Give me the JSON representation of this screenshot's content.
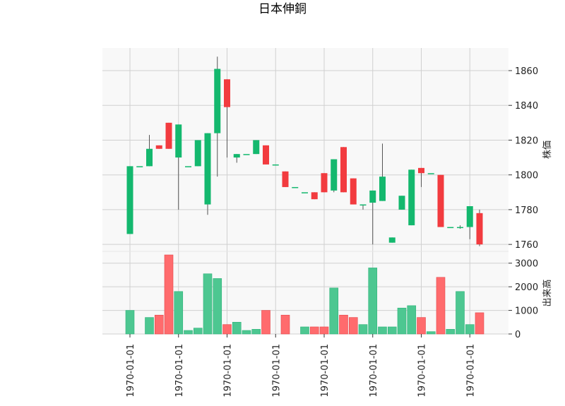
{
  "chart_data": {
    "type": "candlestick",
    "title": "日本伸銅",
    "price_ylabel": "株価",
    "volume_ylabel": "出来高",
    "x_tick_labels": [
      "1970-01-01",
      "1970-01-01",
      "1970-01-01",
      "1970-01-01",
      "1970-01-01",
      "1970-01-01",
      "1970-01-01",
      "1970-01-01"
    ],
    "price_ylim": [
      1756,
      1873
    ],
    "price_ticks": [
      1760,
      1780,
      1800,
      1820,
      1840,
      1860
    ],
    "price_tick_labels": [
      "1760",
      "1780",
      "1800",
      "1820",
      "1840",
      "1860"
    ],
    "volume_ylim": [
      0,
      3500
    ],
    "volume_ticks": [
      0,
      1000,
      2000,
      3000
    ],
    "volume_tick_labels": [
      "0",
      "1000",
      "2000",
      "3000"
    ],
    "grid": true,
    "colors": {
      "up": "#14b86e",
      "down": "#f23b3f",
      "up_volume": "#4dc791",
      "down_volume": "#ff6b6d",
      "wick": "#555555"
    },
    "candles": [
      {
        "open": 1766,
        "close": 1805,
        "high": 1805,
        "low": 1766,
        "volume": 1000
      },
      {
        "open": 1805,
        "close": 1805,
        "high": 1805,
        "low": 1805,
        "volume": 0
      },
      {
        "open": 1805,
        "close": 1815,
        "high": 1823,
        "low": 1805,
        "volume": 700
      },
      {
        "open": 1817,
        "close": 1815,
        "high": 1817,
        "low": 1815,
        "volume": 800
      },
      {
        "open": 1830,
        "close": 1815,
        "high": 1830,
        "low": 1815,
        "volume": 3350
      },
      {
        "open": 1810,
        "close": 1829,
        "high": 1829,
        "low": 1780,
        "volume": 1800
      },
      {
        "open": 1805,
        "close": 1805,
        "high": 1805,
        "low": 1805,
        "volume": 150
      },
      {
        "open": 1805,
        "close": 1820,
        "high": 1820,
        "low": 1805,
        "volume": 250
      },
      {
        "open": 1783,
        "close": 1824,
        "high": 1824,
        "low": 1777,
        "volume": 2550
      },
      {
        "open": 1824,
        "close": 1861,
        "high": 1868,
        "low": 1799,
        "volume": 2350
      },
      {
        "open": 1855,
        "close": 1839,
        "high": 1855,
        "low": 1810,
        "volume": 400
      },
      {
        "open": 1810,
        "close": 1812,
        "high": 1812,
        "low": 1807,
        "volume": 500
      },
      {
        "open": 1812,
        "close": 1812,
        "high": 1812,
        "low": 1812,
        "volume": 150
      },
      {
        "open": 1812,
        "close": 1820,
        "high": 1820,
        "low": 1812,
        "volume": 200
      },
      {
        "open": 1817,
        "close": 1806,
        "high": 1817,
        "low": 1806,
        "volume": 1000
      },
      {
        "open": 1806,
        "close": 1806,
        "high": 1806,
        "low": 1806,
        "volume": 0
      },
      {
        "open": 1802,
        "close": 1793,
        "high": 1802,
        "low": 1793,
        "volume": 800
      },
      {
        "open": 1793,
        "close": 1793,
        "high": 1793,
        "low": 1793,
        "volume": 0
      },
      {
        "open": 1790,
        "close": 1790,
        "high": 1790,
        "low": 1790,
        "volume": 300
      },
      {
        "open": 1790,
        "close": 1786,
        "high": 1790,
        "low": 1786,
        "volume": 300
      },
      {
        "open": 1801,
        "close": 1790,
        "high": 1801,
        "low": 1790,
        "volume": 300
      },
      {
        "open": 1791,
        "close": 1809,
        "high": 1809,
        "low": 1790,
        "volume": 1950
      },
      {
        "open": 1816,
        "close": 1790,
        "high": 1816,
        "low": 1790,
        "volume": 800
      },
      {
        "open": 1798,
        "close": 1783,
        "high": 1798,
        "low": 1783,
        "volume": 700
      },
      {
        "open": 1783,
        "close": 1783,
        "high": 1783,
        "low": 1780,
        "volume": 400
      },
      {
        "open": 1784,
        "close": 1791,
        "high": 1791,
        "low": 1760,
        "volume": 2800
      },
      {
        "open": 1785,
        "close": 1799,
        "high": 1818,
        "low": 1785,
        "volume": 300
      },
      {
        "open": 1761,
        "close": 1764,
        "high": 1764,
        "low": 1761,
        "volume": 300
      },
      {
        "open": 1780,
        "close": 1788,
        "high": 1788,
        "low": 1780,
        "volume": 1100
      },
      {
        "open": 1771,
        "close": 1803,
        "high": 1803,
        "low": 1771,
        "volume": 1200
      },
      {
        "open": 1804,
        "close": 1801,
        "high": 1804,
        "low": 1793,
        "volume": 700
      },
      {
        "open": 1801,
        "close": 1801,
        "high": 1801,
        "low": 1801,
        "volume": 100
      },
      {
        "open": 1800,
        "close": 1770,
        "high": 1800,
        "low": 1770,
        "volume": 2400
      },
      {
        "open": 1770,
        "close": 1770,
        "high": 1770,
        "low": 1770,
        "volume": 200
      },
      {
        "open": 1770,
        "close": 1770,
        "high": 1771,
        "low": 1769,
        "volume": 1800
      },
      {
        "open": 1770,
        "close": 1782,
        "high": 1782,
        "low": 1763,
        "volume": 400
      },
      {
        "open": 1778,
        "close": 1760,
        "high": 1780,
        "low": 1759,
        "volume": 900
      }
    ]
  }
}
